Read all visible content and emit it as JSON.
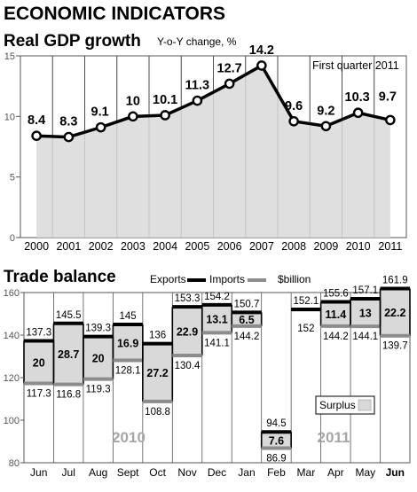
{
  "header": {
    "title": "ECONOMIC INDICATORS"
  },
  "chart_data": [
    {
      "type": "line",
      "title": "Real GDP growth",
      "subtitle": "Y-o-Y change, %",
      "annotation": "First quarter 2011",
      "categories": [
        "2000",
        "2001",
        "2002",
        "2003",
        "2004",
        "2005",
        "2006",
        "2007",
        "2008",
        "2009",
        "2010",
        "2011"
      ],
      "values": [
        8.4,
        8.3,
        9.1,
        10,
        10.1,
        11.3,
        12.7,
        14.2,
        9.6,
        9.2,
        10.3,
        9.7
      ],
      "value_labels": [
        "8.4",
        "8.3",
        "9.1",
        "10",
        "10.1",
        "11.3",
        "12.7",
        "14.2",
        "9.6",
        "9.2",
        "10.3",
        "9.7"
      ],
      "ylim": [
        0,
        15
      ],
      "yticks": [
        "0",
        "5",
        "10",
        "15"
      ],
      "grid": true,
      "fill_color": "#d9d9d9",
      "line_color": "#000000"
    },
    {
      "type": "bar",
      "title": "Trade balance",
      "legend": {
        "exports": "Exports",
        "imports": "Imports",
        "unit": "$billion",
        "surplus": "Surplus"
      },
      "categories": [
        "Jun",
        "Jul",
        "Aug",
        "Sept",
        "Oct",
        "Nov",
        "Dec",
        "Jan",
        "Feb",
        "Mar",
        "Apr",
        "May",
        "Jun"
      ],
      "exports": [
        137.3,
        145.5,
        139.3,
        145,
        136,
        153.3,
        154.2,
        150.7,
        94.5,
        152.1,
        155.6,
        157.1,
        161.9
      ],
      "imports": [
        117.3,
        116.8,
        119.3,
        128.1,
        108.8,
        130.4,
        141.1,
        144.2,
        86.9,
        152,
        144.2,
        144.1,
        139.7
      ],
      "surplus": [
        20,
        28.7,
        20,
        16.9,
        27.2,
        22.9,
        13.1,
        6.5,
        7.6,
        null,
        11.4,
        13,
        22.2
      ],
      "export_labels": [
        "137.3",
        "145.5",
        "139.3",
        "145",
        "136",
        "153.3",
        "154.2",
        "150.7",
        "94.5",
        "152.1",
        "155.6",
        "157.1",
        "161.9"
      ],
      "import_labels": [
        "117.3",
        "116.8",
        "119.3",
        "128.1",
        "108.8",
        "130.4",
        "141.1",
        "144.2",
        "86.9",
        "152",
        "144.2",
        "144.1",
        "139.7"
      ],
      "surplus_labels": [
        "20",
        "28.7",
        "20",
        "16.9",
        "27.2",
        "22.9",
        "13.1",
        "6.5",
        "7.6",
        "",
        "11.4",
        "13",
        "22.2"
      ],
      "year_labels": [
        "2010",
        "2011"
      ],
      "ylim": [
        80,
        160
      ],
      "yticks": [
        "80",
        "100",
        "120",
        "140",
        "160"
      ],
      "export_color": "#000000",
      "import_color": "#8c8c8c",
      "surplus_fill": "#d9d9d9"
    }
  ]
}
